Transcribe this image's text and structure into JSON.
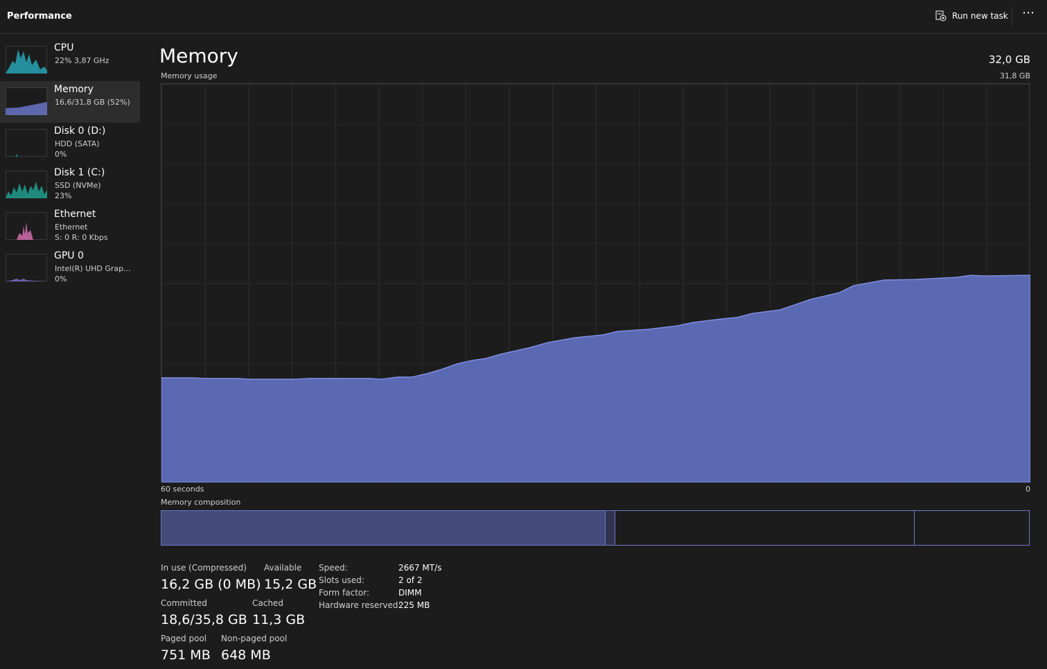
{
  "header": {
    "title": "Performance",
    "run_new_task": "Run new task"
  },
  "sidebar": [
    {
      "name": "CPU",
      "lines": [
        "22%  3,87 GHz"
      ]
    },
    {
      "name": "Memory",
      "lines": [
        "16,6/31,8 GB (52%)"
      ]
    },
    {
      "name": "Disk 0 (D:)",
      "lines": [
        "HDD (SATA)",
        "0%"
      ]
    },
    {
      "name": "Disk 1 (C:)",
      "lines": [
        "SSD (NVMe)",
        "23%"
      ]
    },
    {
      "name": "Ethernet",
      "lines": [
        "Ethernet",
        "S: 0 R: 0 Kbps"
      ]
    },
    {
      "name": "GPU 0",
      "lines": [
        "Intel(R) UHD Grap...",
        "0%"
      ]
    }
  ],
  "main": {
    "title": "Memory",
    "total": "32,0 GB",
    "composition_label": "Memory composition"
  },
  "chart_data": {
    "type": "area",
    "title": "Memory usage",
    "color": "#5f6dbb",
    "x": [
      60,
      57.9,
      56.9,
      54.8,
      53.9,
      50.8,
      49.7,
      45.7,
      44.8,
      43.7,
      42.7,
      41.7,
      40.7,
      39.6,
      38.6,
      37.6,
      36.6,
      34.5,
      33.3,
      31.4,
      29.5,
      28.5,
      26.4,
      24.4,
      23.3,
      21.3,
      20.3,
      19.2,
      17.3,
      15.2,
      13.2,
      12.2,
      10.1,
      8.0,
      5.1,
      4.1,
      3.2,
      0
    ],
    "values": [
      8.35,
      8.35,
      8.3,
      8.3,
      8.24,
      8.24,
      8.3,
      8.3,
      8.24,
      8.41,
      8.41,
      8.68,
      9.01,
      9.46,
      9.73,
      9.9,
      10.23,
      10.78,
      11.17,
      11.56,
      11.78,
      12.06,
      12.22,
      12.5,
      12.77,
      13.05,
      13.16,
      13.49,
      13.77,
      14.6,
      15.15,
      15.71,
      16.15,
      16.2,
      16.37,
      16.53,
      16.48,
      16.53
    ],
    "xlim": [
      60,
      0
    ],
    "xticks": [
      {
        "value": 60,
        "label": "60 seconds"
      },
      0
    ],
    "ylim": [
      0,
      31.8
    ],
    "yticks": [
      {
        "value": 31.8,
        "label": "31,8 GB"
      }
    ]
  },
  "stats": [
    {
      "label": "In use (Compressed)",
      "value": "16,2 GB (0 MB)"
    },
    {
      "label": "Available",
      "value": "15,2 GB"
    },
    {
      "label": "Committed",
      "value": "18,6/35,8 GB"
    },
    {
      "label": "Cached",
      "value": "11,3 GB"
    },
    {
      "label": "Paged pool",
      "value": "751 MB"
    },
    {
      "label": "Non-paged pool",
      "value": "648 MB"
    }
  ],
  "details": [
    {
      "label": "Speed:",
      "value": "2667 MT/s"
    },
    {
      "label": "Slots used:",
      "value": "2 of 2"
    },
    {
      "label": "Form factor:",
      "value": "DIMM"
    },
    {
      "label": "Hardware reserved:",
      "value": "225 MB"
    }
  ]
}
